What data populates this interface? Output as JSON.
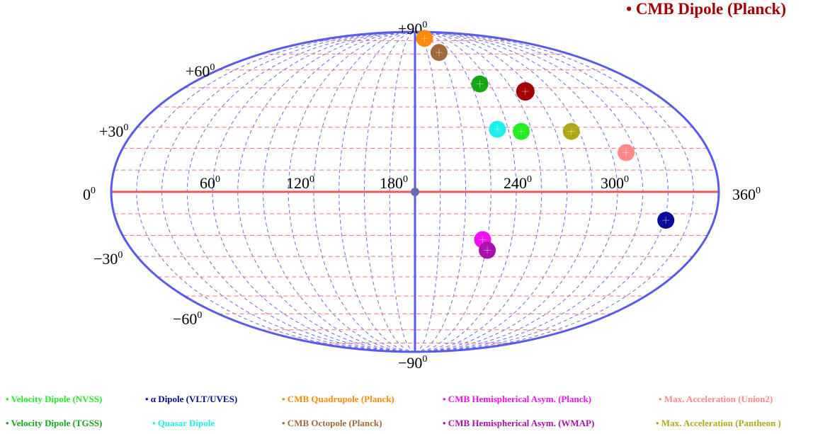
{
  "chart_data": {
    "type": "scatter",
    "projection": "mollweide",
    "title": "• CMB Dipole (Planck)",
    "title_color": "#a50000",
    "xlim": [
      0,
      360
    ],
    "ylim": [
      -90,
      90
    ],
    "grid": true,
    "axis_labels": {
      "lon": [
        {
          "text": "0",
          "sup": "0"
        },
        {
          "text": "60",
          "sup": "0"
        },
        {
          "text": "120",
          "sup": "0"
        },
        {
          "text": "180",
          "sup": "0"
        },
        {
          "text": "240",
          "sup": "0"
        },
        {
          "text": "300",
          "sup": "0"
        },
        {
          "text": "360",
          "sup": "0"
        }
      ],
      "lat": [
        {
          "text": "+90",
          "sup": "0"
        },
        {
          "text": "+60",
          "sup": "0"
        },
        {
          "text": "+30",
          "sup": "0"
        },
        {
          "text": "−30",
          "sup": "0"
        },
        {
          "text": "−60",
          "sup": "0"
        },
        {
          "text": "−90",
          "sup": "0"
        }
      ]
    },
    "series": [
      {
        "name": "Velocity Dipole (NVSS)",
        "color": "#22ee22",
        "x": 248,
        "y": 28
      },
      {
        "name": "α Dipole (VLT/UVES)",
        "color": "#0a0a9a",
        "x": 331,
        "y": -13
      },
      {
        "name": "CMB Quadrupole (Planck)",
        "color": "#ff8a0a",
        "x": 200,
        "y": 82
      },
      {
        "name": "CMB Hemispherical Asym. (Planck)",
        "color": "#ee10ee",
        "x": 222,
        "y": -22
      },
      {
        "name": "Max. Acceleration (Union2)",
        "color": "#ff8888",
        "x": 309,
        "y": 18
      },
      {
        "name": "Velocity Dipole (TGSS)",
        "color": "#15a815",
        "x": 232,
        "y": 52
      },
      {
        "name": "Quasar Dipole",
        "color": "#22eeee",
        "x": 233,
        "y": 29
      },
      {
        "name": "CMB Octopole (Planck)",
        "color": "#a06a3a",
        "x": 209,
        "y": 71
      },
      {
        "name": "CMB Hemispherical Asym. (WMAP)",
        "color": "#aa10aa",
        "x": 226,
        "y": -27
      },
      {
        "name": "Max. Acceleration (Pantheon )",
        "color": "#b0a818",
        "x": 280,
        "y": 28
      },
      {
        "name": "CMB Dipole (Planck)",
        "color": "#a50000",
        "x": 264,
        "y": 48
      }
    ],
    "legend": {
      "bullet": "•",
      "rows": [
        [
          "Velocity Dipole (NVSS)",
          "α Dipole (VLT/UVES)",
          "CMB Quadrupole (Planck)",
          "CMB Hemispherical Asym. (Planck)",
          "Max. Acceleration (Union2)"
        ],
        [
          "Velocity Dipole (TGSS)",
          "Quasar Dipole",
          "CMB Octopole (Planck)",
          "CMB Hemispherical Asym. (WMAP)",
          "Max. Acceleration (Pantheon )"
        ]
      ]
    },
    "colors": {
      "outline": "#5a5aee",
      "equator": "#ee5555",
      "meridian_grid": "#6a6aee",
      "parallel_grid": "#ee7777",
      "center_dot": "#6a6ab8",
      "point_cross": "#ffffff"
    }
  }
}
